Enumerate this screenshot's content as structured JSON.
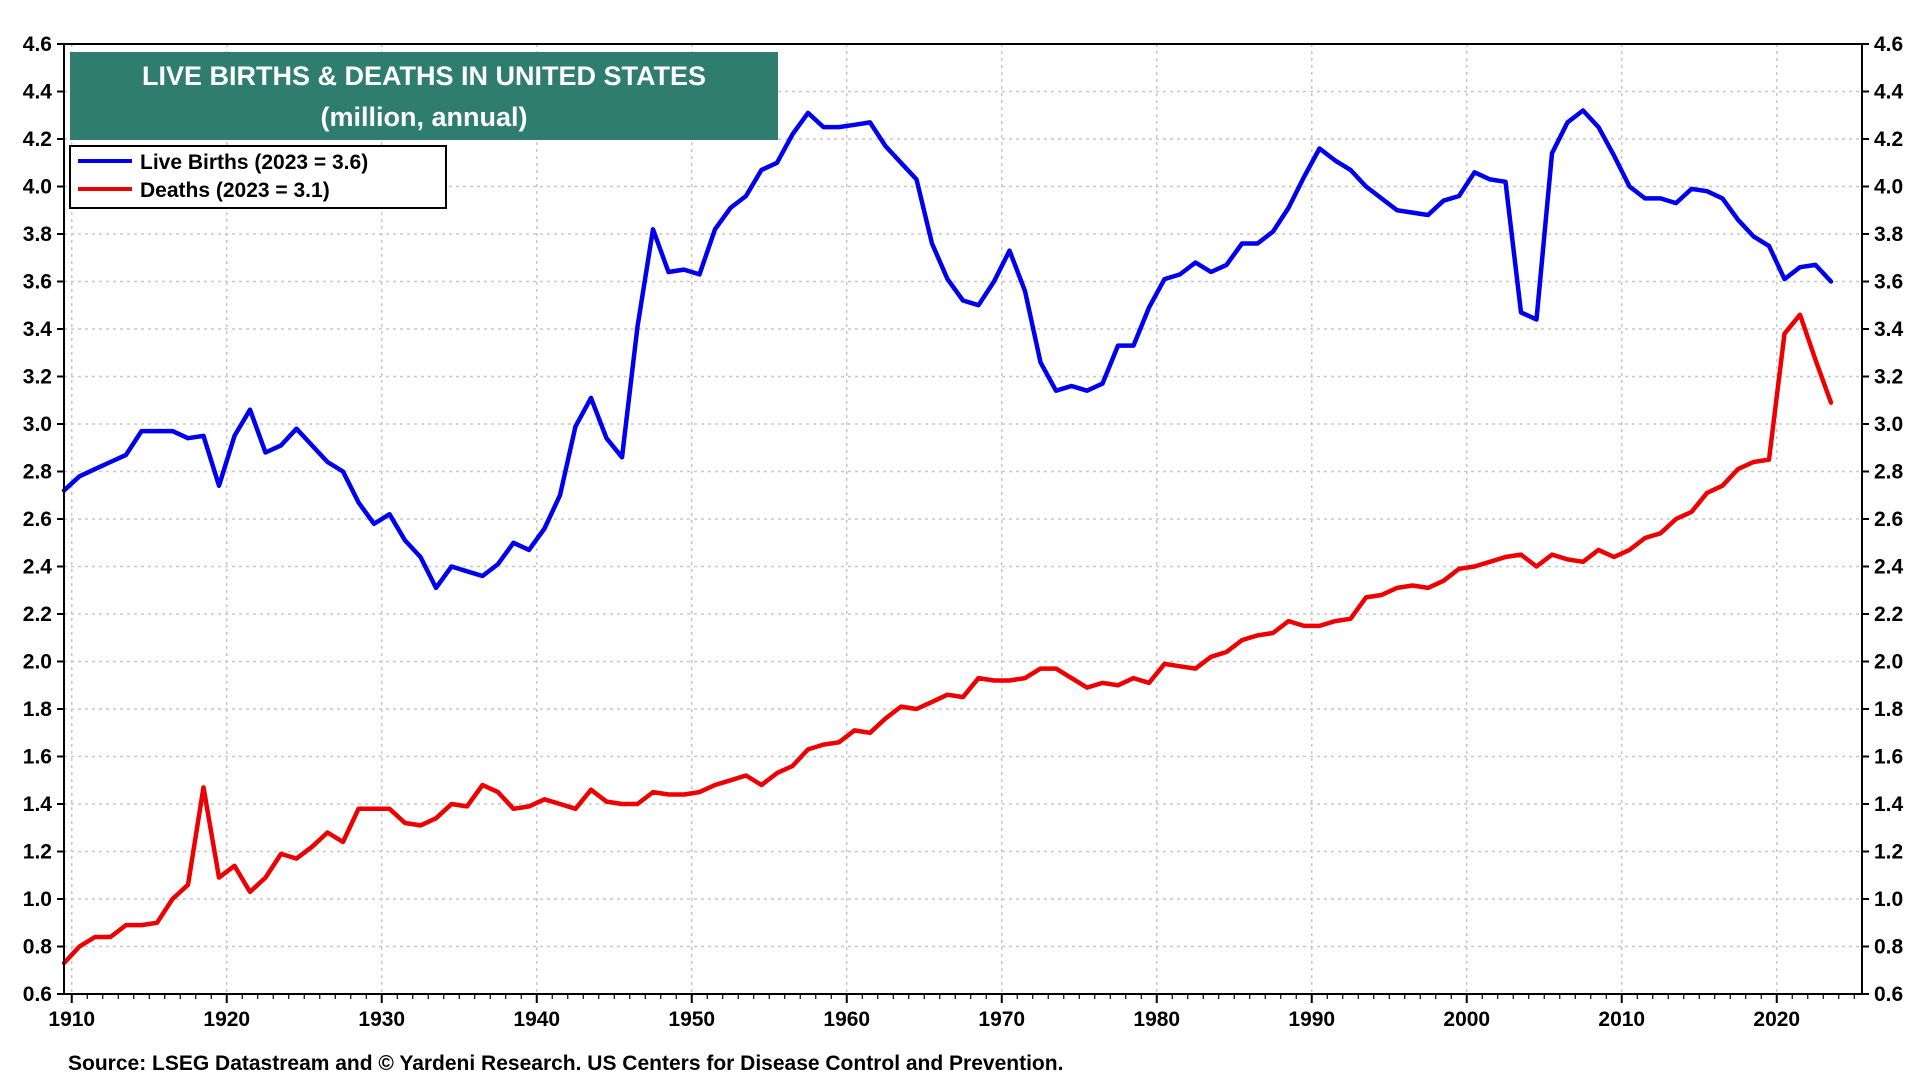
{
  "chart_data": {
    "type": "line",
    "title": "LIVE BIRTHS & DEATHS IN UNITED STATES",
    "subtitle": "(million, annual)",
    "source": "Source: LSEG Datastream and © Yardeni Research. US Centers for Disease Control and Prevention.",
    "xlim": [
      1909.5,
      2025.5
    ],
    "ylim": [
      0.6,
      4.6
    ],
    "x_ticks": [
      "1910",
      "1920",
      "1930",
      "1940",
      "1950",
      "1960",
      "1970",
      "1980",
      "1990",
      "2000",
      "2010",
      "2020"
    ],
    "y_ticks": [
      "0.6",
      "0.8",
      "1.0",
      "1.2",
      "1.4",
      "1.6",
      "1.8",
      "2.0",
      "2.2",
      "2.4",
      "2.6",
      "2.8",
      "3.0",
      "3.2",
      "3.4",
      "3.6",
      "3.8",
      "4.0",
      "4.2",
      "4.4",
      "4.6"
    ],
    "grid": true,
    "legend_position": "top-left",
    "colors": {
      "births": "#0000ee",
      "deaths": "#ee0000",
      "title_bg": "#2e7d6e",
      "grid": "#c8c8c8"
    },
    "series": [
      {
        "name": "Live Births (2023 = 3.6)",
        "x": [
          1909,
          1910,
          1911,
          1912,
          1913,
          1914,
          1915,
          1916,
          1917,
          1918,
          1919,
          1920,
          1921,
          1922,
          1923,
          1924,
          1925,
          1926,
          1927,
          1928,
          1929,
          1930,
          1931,
          1932,
          1933,
          1934,
          1935,
          1936,
          1937,
          1938,
          1939,
          1940,
          1941,
          1942,
          1943,
          1944,
          1945,
          1946,
          1947,
          1948,
          1949,
          1950,
          1951,
          1952,
          1953,
          1954,
          1955,
          1956,
          1957,
          1958,
          1959,
          1960,
          1961,
          1962,
          1963,
          1964,
          1965,
          1966,
          1967,
          1968,
          1969,
          1970,
          1971,
          1972,
          1973,
          1974,
          1975,
          1976,
          1977,
          1978,
          1979,
          1980,
          1981,
          1982,
          1983,
          1984,
          1985,
          1986,
          1987,
          1988,
          1989,
          1990,
          1991,
          1992,
          1993,
          1994,
          1995,
          1996,
          1997,
          1998,
          1999,
          2000,
          2001,
          2002,
          2003,
          2004,
          2005,
          2006,
          2007,
          2008,
          2009,
          2010,
          2011,
          2012,
          2013,
          2014,
          2015,
          2016,
          2017,
          2018,
          2019,
          2020,
          2021,
          2022,
          2023
        ],
        "values": [
          2.72,
          2.78,
          2.81,
          2.84,
          2.87,
          2.97,
          2.97,
          2.97,
          2.94,
          2.95,
          2.74,
          2.95,
          3.06,
          2.88,
          2.91,
          2.98,
          2.91,
          2.84,
          2.8,
          2.67,
          2.58,
          2.62,
          2.51,
          2.44,
          2.31,
          2.4,
          2.38,
          2.36,
          2.41,
          2.5,
          2.47,
          2.56,
          2.7,
          2.99,
          3.11,
          2.94,
          2.86,
          3.41,
          3.82,
          3.64,
          3.65,
          3.63,
          3.82,
          3.91,
          3.96,
          4.07,
          4.1,
          4.22,
          4.31,
          4.25,
          4.25,
          4.26,
          4.27,
          4.17,
          4.1,
          4.03,
          3.76,
          3.61,
          3.52,
          3.5,
          3.6,
          3.73,
          3.56,
          3.26,
          3.14,
          3.16,
          3.14,
          3.17,
          3.33,
          3.33,
          3.49,
          3.61,
          3.63,
          3.68,
          3.64,
          3.67,
          3.76,
          3.76,
          3.81,
          3.91,
          4.04,
          4.16,
          4.11,
          4.07,
          4.0,
          3.95,
          3.9,
          3.89,
          3.88,
          3.94,
          3.96,
          4.06,
          4.03,
          4.02,
          3.47,
          3.44,
          4.14,
          4.27,
          4.32,
          4.25,
          4.13,
          4.0,
          3.95,
          3.95,
          3.93,
          3.99,
          3.98,
          3.95,
          3.86,
          3.79,
          3.75,
          3.61,
          3.66,
          3.67,
          3.6
        ]
      },
      {
        "name": "Deaths (2023 = 3.1)",
        "x": [
          1909,
          1910,
          1911,
          1912,
          1913,
          1914,
          1915,
          1916,
          1917,
          1918,
          1919,
          1920,
          1921,
          1922,
          1923,
          1924,
          1925,
          1926,
          1927,
          1928,
          1929,
          1930,
          1931,
          1932,
          1933,
          1934,
          1935,
          1936,
          1937,
          1938,
          1939,
          1940,
          1941,
          1942,
          1943,
          1944,
          1945,
          1946,
          1947,
          1948,
          1949,
          1950,
          1951,
          1952,
          1953,
          1954,
          1955,
          1956,
          1957,
          1958,
          1959,
          1960,
          1961,
          1962,
          1963,
          1964,
          1965,
          1966,
          1967,
          1968,
          1969,
          1970,
          1971,
          1972,
          1973,
          1974,
          1975,
          1976,
          1977,
          1978,
          1979,
          1980,
          1981,
          1982,
          1983,
          1984,
          1985,
          1986,
          1987,
          1988,
          1989,
          1990,
          1991,
          1992,
          1993,
          1994,
          1995,
          1996,
          1997,
          1998,
          1999,
          2000,
          2001,
          2002,
          2003,
          2004,
          2005,
          2006,
          2007,
          2008,
          2009,
          2010,
          2011,
          2012,
          2013,
          2014,
          2015,
          2016,
          2017,
          2018,
          2019,
          2020,
          2021,
          2022,
          2023
        ],
        "values": [
          0.73,
          0.8,
          0.84,
          0.84,
          0.89,
          0.89,
          0.9,
          1.0,
          1.06,
          1.47,
          1.09,
          1.14,
          1.03,
          1.09,
          1.19,
          1.17,
          1.22,
          1.28,
          1.24,
          1.38,
          1.38,
          1.38,
          1.32,
          1.31,
          1.34,
          1.4,
          1.39,
          1.48,
          1.45,
          1.38,
          1.39,
          1.42,
          1.4,
          1.38,
          1.46,
          1.41,
          1.4,
          1.4,
          1.45,
          1.44,
          1.44,
          1.45,
          1.48,
          1.5,
          1.52,
          1.48,
          1.53,
          1.56,
          1.63,
          1.65,
          1.66,
          1.71,
          1.7,
          1.76,
          1.81,
          1.8,
          1.83,
          1.86,
          1.85,
          1.93,
          1.92,
          1.92,
          1.93,
          1.97,
          1.97,
          1.93,
          1.89,
          1.91,
          1.9,
          1.93,
          1.91,
          1.99,
          1.98,
          1.97,
          2.02,
          2.04,
          2.09,
          2.11,
          2.12,
          2.17,
          2.15,
          2.15,
          2.17,
          2.18,
          2.27,
          2.28,
          2.31,
          2.32,
          2.31,
          2.34,
          2.39,
          2.4,
          2.42,
          2.44,
          2.45,
          2.4,
          2.45,
          2.43,
          2.42,
          2.47,
          2.44,
          2.47,
          2.52,
          2.54,
          2.6,
          2.63,
          2.71,
          2.74,
          2.81,
          2.84,
          2.85,
          3.38,
          3.46,
          3.27,
          3.09
        ]
      }
    ]
  }
}
